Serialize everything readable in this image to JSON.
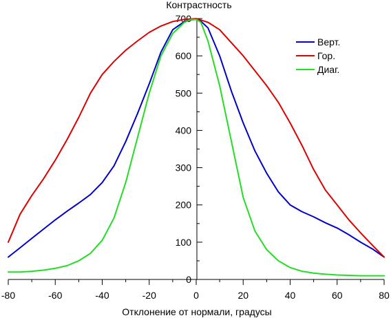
{
  "chart_data": {
    "type": "line",
    "title": "",
    "ylabel": "Контрастность",
    "xlabel": "Отклонение от нормали, градусы",
    "xlim": [
      -80,
      80
    ],
    "ylim": [
      0,
      700
    ],
    "xticks": [
      -80,
      -60,
      -40,
      -20,
      0,
      20,
      40,
      60,
      80
    ],
    "yticks": [
      0,
      100,
      200,
      300,
      400,
      500,
      600,
      700
    ],
    "grid": false,
    "legend_position": "top-right",
    "series": [
      {
        "name": "Верт.",
        "color": "#0000cc",
        "x": [
          -80,
          -75,
          -70,
          -65,
          -60,
          -55,
          -50,
          -45,
          -40,
          -35,
          -30,
          -25,
          -20,
          -15,
          -10,
          -5,
          -2,
          0,
          2,
          5,
          10,
          15,
          20,
          25,
          30,
          35,
          40,
          45,
          50,
          55,
          60,
          65,
          70,
          75,
          80
        ],
        "y": [
          60,
          85,
          110,
          135,
          160,
          183,
          205,
          228,
          260,
          305,
          370,
          445,
          525,
          610,
          670,
          692,
          697,
          698,
          693,
          675,
          600,
          505,
          420,
          345,
          285,
          235,
          200,
          182,
          168,
          152,
          138,
          120,
          100,
          82,
          60
        ]
      },
      {
        "name": "Гор.",
        "color": "#dd0000",
        "x": [
          -80,
          -75,
          -70,
          -65,
          -60,
          -55,
          -50,
          -45,
          -40,
          -35,
          -30,
          -25,
          -20,
          -15,
          -10,
          -5,
          0,
          5,
          10,
          15,
          20,
          25,
          30,
          35,
          40,
          45,
          50,
          55,
          60,
          65,
          70,
          75,
          80
        ],
        "y": [
          100,
          175,
          225,
          270,
          320,
          375,
          435,
          500,
          550,
          585,
          615,
          640,
          663,
          680,
          692,
          698,
          700,
          690,
          670,
          635,
          600,
          560,
          520,
          475,
          420,
          360,
          295,
          240,
          200,
          160,
          125,
          92,
          60
        ]
      },
      {
        "name": "Диаг.",
        "color": "#22dd22",
        "x": [
          -80,
          -75,
          -70,
          -65,
          -60,
          -55,
          -50,
          -45,
          -40,
          -35,
          -30,
          -25,
          -20,
          -15,
          -10,
          -5,
          -2,
          0,
          2,
          5,
          10,
          15,
          20,
          25,
          30,
          35,
          40,
          45,
          50,
          55,
          60,
          65,
          70,
          75,
          80
        ],
        "y": [
          20,
          20,
          22,
          25,
          30,
          37,
          50,
          70,
          105,
          165,
          260,
          380,
          500,
          600,
          660,
          690,
          698,
          698,
          690,
          640,
          520,
          370,
          220,
          130,
          80,
          50,
          32,
          22,
          17,
          14,
          12,
          11,
          10,
          10,
          10
        ]
      }
    ]
  }
}
